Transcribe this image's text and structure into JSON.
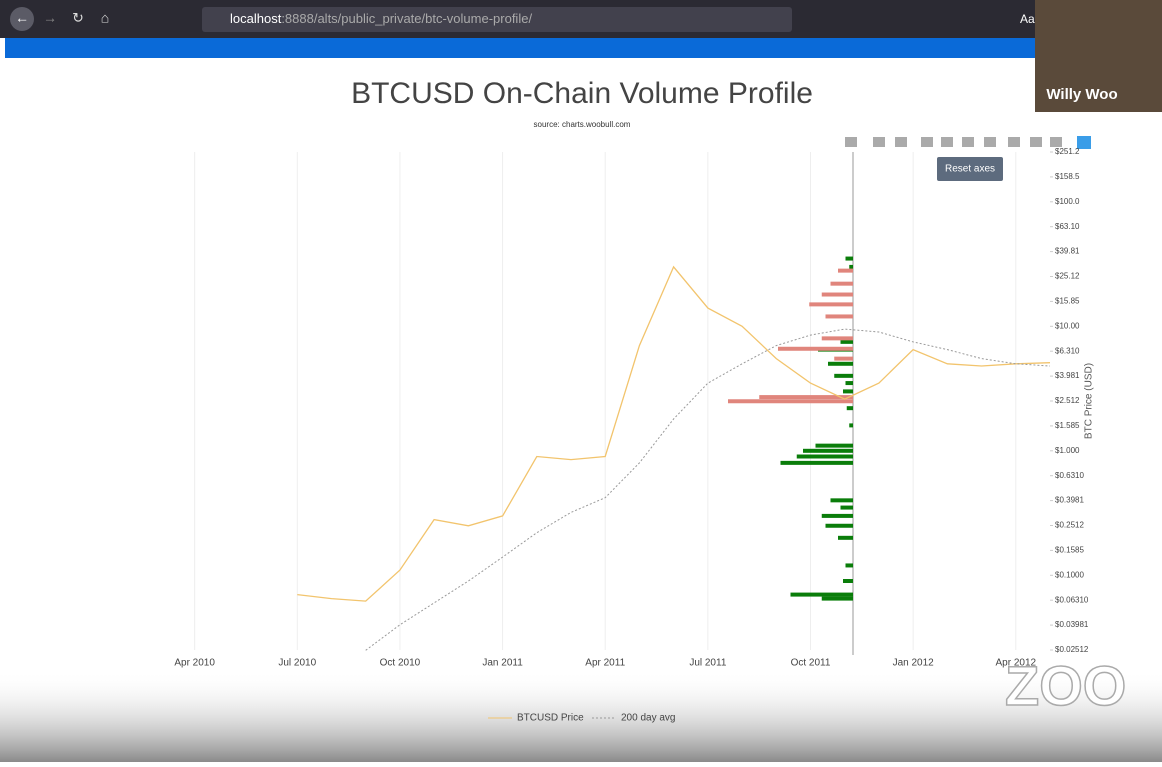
{
  "browser": {
    "url_host": "localhost",
    "url_rest": ":8888/alts/public_private/btc-volume-profile/",
    "toolbar_text": "Aa"
  },
  "video": {
    "name": "Willy Woo"
  },
  "tooltip": "Reset axes",
  "watermark": "ZOO",
  "chart_data": {
    "type": "line",
    "title": "BTCUSD On-Chain Volume Profile",
    "subtitle": "source: charts.woobull.com",
    "y_axis_label": "BTC Price (USD)",
    "log_y": true,
    "grid": true,
    "legend": "bottom",
    "x": [
      "2010-07",
      "2010-08",
      "2010-09",
      "2010-10",
      "2010-11",
      "2010-12",
      "2011-01",
      "2011-02",
      "2011-03",
      "2011-04",
      "2011-05",
      "2011-06",
      "2011-07",
      "2011-08",
      "2011-09",
      "2011-10",
      "2011-11",
      "2011-12",
      "2012-01",
      "2012-02",
      "2012-03",
      "2012-04",
      "2012-05"
    ],
    "xlim": [
      "2010-01",
      "2012-05"
    ],
    "xticks": [
      {
        "value": "2010-04",
        "label": "Apr 2010"
      },
      {
        "value": "2010-07",
        "label": "Jul 2010"
      },
      {
        "value": "2010-10",
        "label": "Oct 2010"
      },
      {
        "value": "2011-01",
        "label": "Jan 2011"
      },
      {
        "value": "2011-04",
        "label": "Apr 2011"
      },
      {
        "value": "2011-07",
        "label": "Jul 2011"
      },
      {
        "value": "2011-10",
        "label": "Oct 2011"
      },
      {
        "value": "2012-01",
        "label": "Jan 2012"
      },
      {
        "value": "2012-04",
        "label": "Apr 2012"
      }
    ],
    "ylim": [
      0.02512,
      251.2
    ],
    "yticks": [
      {
        "value": 251.2,
        "label": "$251.2"
      },
      {
        "value": 158.5,
        "label": "$158.5"
      },
      {
        "value": 100,
        "label": "$100.0"
      },
      {
        "value": 63.1,
        "label": "$63.10"
      },
      {
        "value": 39.81,
        "label": "$39.81"
      },
      {
        "value": 25.12,
        "label": "$25.12"
      },
      {
        "value": 15.85,
        "label": "$15.85"
      },
      {
        "value": 10,
        "label": "$10.00"
      },
      {
        "value": 6.31,
        "label": "$6.310"
      },
      {
        "value": 3.981,
        "label": "$3.981"
      },
      {
        "value": 2.512,
        "label": "$2.512"
      },
      {
        "value": 1.585,
        "label": "$1.585"
      },
      {
        "value": 1,
        "label": "$1.000"
      },
      {
        "value": 0.631,
        "label": "$0.6310"
      },
      {
        "value": 0.3981,
        "label": "$0.3981"
      },
      {
        "value": 0.2512,
        "label": "$0.2512"
      },
      {
        "value": 0.1585,
        "label": "$0.1585"
      },
      {
        "value": 0.1,
        "label": "$0.1000"
      },
      {
        "value": 0.0631,
        "label": "$0.06310"
      },
      {
        "value": 0.03981,
        "label": "$0.03981"
      },
      {
        "value": 0.02512,
        "label": "$0.02512"
      }
    ],
    "series": [
      {
        "name": "BTCUSD Price",
        "color": "#f2c46d",
        "values": [
          0.07,
          0.065,
          0.062,
          0.11,
          0.28,
          0.25,
          0.3,
          0.9,
          0.85,
          0.9,
          7,
          30,
          14,
          10,
          5.5,
          3.5,
          2.6,
          3.5,
          6.5,
          5,
          4.8,
          5,
          5.1
        ]
      },
      {
        "name": "200 day avg",
        "color": "#999999",
        "values": [
          null,
          null,
          0.025,
          0.04,
          0.06,
          0.09,
          0.14,
          0.22,
          0.32,
          0.42,
          0.8,
          1.8,
          3.5,
          5,
          7,
          8.5,
          9.5,
          9,
          7.5,
          6.5,
          5.5,
          5,
          4.8
        ]
      }
    ],
    "profile": {
      "prices": [
        0.065,
        0.07,
        0.09,
        0.12,
        0.2,
        0.25,
        0.3,
        0.35,
        0.4,
        0.8,
        0.9,
        1,
        1.1,
        1.6,
        2.2,
        3,
        3.5,
        4,
        5,
        6.5,
        7.5,
        30,
        35,
        2.5,
        2.7,
        5.5,
        6.6,
        8,
        12,
        15,
        18,
        22,
        28
      ],
      "volumes": [
        25,
        50,
        8,
        6,
        12,
        22,
        25,
        10,
        18,
        58,
        45,
        40,
        30,
        3,
        5,
        8,
        6,
        15,
        20,
        28,
        10,
        3,
        6,
        100,
        75,
        15,
        60,
        25,
        22,
        35,
        25,
        18,
        12
      ],
      "colors": [
        "#0a7d0a",
        "#0a7d0a",
        "#0a7d0a",
        "#0a7d0a",
        "#0a7d0a",
        "#0a7d0a",
        "#0a7d0a",
        "#0a7d0a",
        "#0a7d0a",
        "#0a7d0a",
        "#0a7d0a",
        "#0a7d0a",
        "#0a7d0a",
        "#0a7d0a",
        "#0a7d0a",
        "#0a7d0a",
        "#0a7d0a",
        "#0a7d0a",
        "#0a7d0a",
        "#0a7d0a",
        "#0a7d0a",
        "#0a7d0a",
        "#0a7d0a",
        "#e0857c",
        "#e0857c",
        "#e0857c",
        "#e0857c",
        "#e0857c",
        "#e0857c",
        "#e0857c",
        "#e0857c",
        "#e0857c",
        "#e0857c"
      ]
    }
  }
}
